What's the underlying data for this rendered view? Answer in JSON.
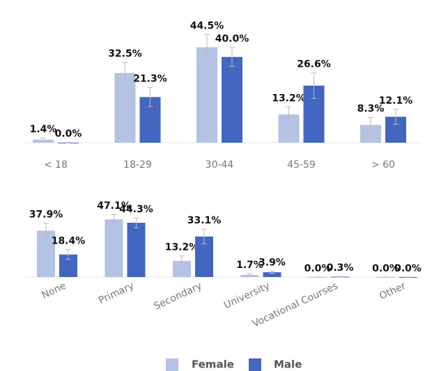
{
  "chart_data": [
    {
      "type": "bar",
      "categories": [
        "< 18",
        "18-29",
        "30-44",
        "45-59",
        "> 60"
      ],
      "series": [
        {
          "name": "Female",
          "color": "#b4c2e4",
          "values": [
            1.4,
            32.5,
            44.5,
            13.2,
            8.3
          ],
          "value_labels": [
            "1.4%",
            "32.5%",
            "44.5%",
            "13.2%",
            "8.3%"
          ],
          "errors": [
            0.8,
            5,
            6,
            3.5,
            3.5
          ]
        },
        {
          "name": "Male",
          "color": "#4366c1",
          "values": [
            0.0,
            21.3,
            40.0,
            26.6,
            12.1
          ],
          "value_labels": [
            "0.0%",
            "21.3%",
            "40.0%",
            "26.6%",
            "12.1%"
          ],
          "errors": [
            0.2,
            4.5,
            4.5,
            6,
            3.5
          ]
        }
      ],
      "ylim": [
        0,
        50
      ]
    },
    {
      "type": "bar",
      "categories": [
        "None",
        "Primary",
        "Secondary",
        "University",
        "Vocational Courses",
        "Other"
      ],
      "series": [
        {
          "name": "Female",
          "color": "#b4c2e4",
          "values": [
            37.9,
            47.1,
            13.2,
            1.7,
            0.0,
            0.0
          ],
          "value_labels": [
            "37.9%",
            "47.1%",
            "13.2%",
            "1.7%",
            "0.0%",
            "0.0%"
          ],
          "errors": [
            6,
            4,
            4,
            1,
            0,
            0
          ]
        },
        {
          "name": "Male",
          "color": "#4366c1",
          "values": [
            18.4,
            44.3,
            33.1,
            3.9,
            0.3,
            0.0
          ],
          "value_labels": [
            "18.4%",
            "44.3%",
            "33.1%",
            "3.9%",
            "0.3%",
            "0.0%"
          ],
          "errors": [
            4,
            4,
            6,
            1,
            0.2,
            0
          ]
        }
      ],
      "ylim": [
        0,
        50
      ]
    }
  ]
}
